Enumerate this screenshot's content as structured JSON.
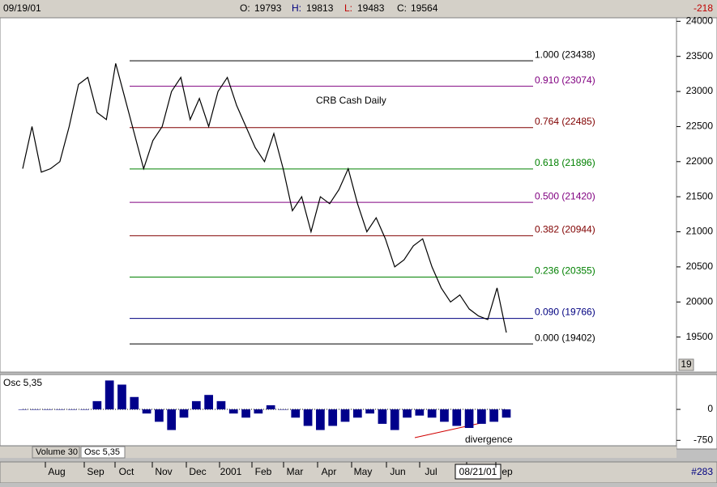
{
  "header": {
    "date": "09/19/01",
    "open_label": "O:",
    "open": 19793,
    "high_label": "H:",
    "high": 19813,
    "low_label": "L:",
    "low": 19483,
    "close_label": "C:",
    "close": 19564,
    "change": -218
  },
  "chart_data": [
    {
      "type": "line",
      "title": "CRB Cash Daily",
      "color": "#000000",
      "values": [
        21900,
        22500,
        21850,
        21900,
        22000,
        22500,
        23100,
        23200,
        22700,
        22600,
        23400,
        22900,
        22400,
        21900,
        22300,
        22500,
        23000,
        23200,
        22600,
        22900,
        22500,
        23000,
        23200,
        22800,
        22500,
        22200,
        22000,
        22400,
        21900,
        21300,
        21500,
        21000,
        21500,
        21400,
        21600,
        21900,
        21400,
        21000,
        21200,
        20900,
        20500,
        20600,
        20800,
        20900,
        20500,
        20200,
        20000,
        20100,
        19900,
        19800,
        19750,
        20200,
        19564
      ],
      "ylim": [
        19000,
        24050
      ],
      "yticks": [
        24000,
        23500,
        23000,
        22500,
        22000,
        21500,
        21000,
        20500,
        20000,
        19500
      ],
      "fib_levels": [
        {
          "label": "1.000 (23438)",
          "value": 23438,
          "color": "#000000"
        },
        {
          "label": "0.910 (23074)",
          "value": 23074,
          "color": "#800080"
        },
        {
          "label": "0.764 (22485)",
          "value": 22485,
          "color": "#800000"
        },
        {
          "label": "0.618 (21896)",
          "value": 21896,
          "color": "#008000"
        },
        {
          "label": "0.500 (21420)",
          "value": 21420,
          "color": "#800080"
        },
        {
          "label": "0.382 (20944)",
          "value": 20944,
          "color": "#800000"
        },
        {
          "label": "0.236 (20355)",
          "value": 20355,
          "color": "#008000"
        },
        {
          "label": "0.090 (19766)",
          "value": 19766,
          "color": "#000080"
        },
        {
          "label": "0.000 (19402)",
          "value": 19402,
          "color": "#000000"
        }
      ],
      "scale_box": "19"
    },
    {
      "type": "bar",
      "title": "Osc 5,35",
      "color": "#00008b",
      "values": [
        0,
        0,
        0,
        0,
        0,
        0,
        200,
        700,
        600,
        300,
        -100,
        -300,
        -500,
        -200,
        200,
        350,
        200,
        -100,
        -200,
        -100,
        100,
        0,
        -200,
        -400,
        -500,
        -400,
        -300,
        -200,
        -100,
        -350,
        -500,
        -200,
        -150,
        -200,
        -300,
        -400,
        -450,
        -350,
        -300,
        -200
      ],
      "ylim": [
        -881,
        844
      ],
      "yticks": [
        0,
        -750
      ],
      "annotation": "divergence"
    }
  ],
  "tabs": [
    "Volume 30",
    "Osc 5,35"
  ],
  "time_axis": [
    "Aug",
    "Sep",
    "Oct",
    "Nov",
    "Dec",
    "2001",
    "Feb",
    "Mar",
    "Apr",
    "May",
    "Jun",
    "Jul",
    "08/21/01",
    "ep"
  ],
  "status": "#283"
}
